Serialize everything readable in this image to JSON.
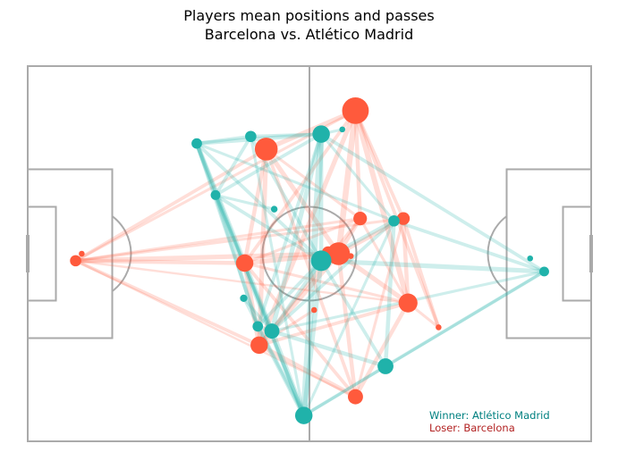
{
  "chart_data": {
    "type": "scatter",
    "title": "Players mean positions and passes",
    "subtitle": "Barcelona vs. Atlético Madrid",
    "x_range": [
      0,
      120
    ],
    "y_range": [
      0,
      80
    ],
    "grid": false,
    "legend_placement": "bottom-right",
    "annotations": {
      "winner_text": "Winner: Atlético Madrid",
      "loser_text": "Loser: Barcelona"
    },
    "colors": {
      "pitch_lines": "#aaaaaa",
      "barcelona": "#ff5a3c",
      "atletico": "#20b2aa",
      "winner_text": "#008080",
      "loser_text": "#b22222"
    },
    "series": [
      {
        "team": "Barcelona",
        "players": [
          {
            "id": "b1",
            "x": 10.2,
            "y": 38.5,
            "size": 1.0
          },
          {
            "id": "b2",
            "x": 69.8,
            "y": 70.5,
            "size": 3.0
          },
          {
            "id": "b3",
            "x": 50.8,
            "y": 62.3,
            "size": 2.5
          },
          {
            "id": "b4",
            "x": 70.8,
            "y": 47.5,
            "size": 1.3
          },
          {
            "id": "b5",
            "x": 80.0,
            "y": 47.5,
            "size": 1.2
          },
          {
            "id": "b6",
            "x": 66.2,
            "y": 40.0,
            "size": 2.5
          },
          {
            "id": "b7",
            "x": 64.0,
            "y": 40.2,
            "size": 1.2
          },
          {
            "id": "b8",
            "x": 46.2,
            "y": 38.0,
            "size": 1.8
          },
          {
            "id": "b9",
            "x": 81.0,
            "y": 29.5,
            "size": 2.0
          },
          {
            "id": "b10",
            "x": 49.3,
            "y": 20.5,
            "size": 1.8
          },
          {
            "id": "b11",
            "x": 69.8,
            "y": 9.5,
            "size": 1.5
          },
          {
            "id": "b12",
            "x": 61.0,
            "y": 28.0,
            "size": 0.3
          },
          {
            "id": "b13",
            "x": 87.5,
            "y": 24.3,
            "size": 0.3
          },
          {
            "id": "b14",
            "x": 68.8,
            "y": 39.5,
            "size": 0.3
          },
          {
            "id": "b15",
            "x": 11.5,
            "y": 40.0,
            "size": 0.3
          }
        ]
      },
      {
        "team": "Atlético Madrid",
        "players": [
          {
            "id": "a1",
            "x": 36.0,
            "y": 63.5,
            "size": 0.9
          },
          {
            "id": "a2",
            "x": 47.5,
            "y": 65.0,
            "size": 1.0
          },
          {
            "id": "a3",
            "x": 62.5,
            "y": 65.5,
            "size": 1.8
          },
          {
            "id": "a4",
            "x": 40.0,
            "y": 52.5,
            "size": 0.8
          },
          {
            "id": "a5",
            "x": 78.0,
            "y": 47.0,
            "size": 1.0
          },
          {
            "id": "a6",
            "x": 62.5,
            "y": 38.5,
            "size": 2.2
          },
          {
            "id": "a7",
            "x": 46.0,
            "y": 30.5,
            "size": 0.5
          },
          {
            "id": "a8",
            "x": 52.0,
            "y": 23.5,
            "size": 1.5
          },
          {
            "id": "a9",
            "x": 49.0,
            "y": 24.5,
            "size": 0.9
          },
          {
            "id": "a10",
            "x": 76.2,
            "y": 16.0,
            "size": 1.6
          },
          {
            "id": "a11",
            "x": 58.8,
            "y": 5.5,
            "size": 1.8
          },
          {
            "id": "a12",
            "x": 110.0,
            "y": 36.2,
            "size": 0.8
          },
          {
            "id": "a13",
            "x": 52.5,
            "y": 49.5,
            "size": 0.4
          },
          {
            "id": "a14",
            "x": 67.0,
            "y": 66.5,
            "size": 0.3
          },
          {
            "id": "a15",
            "x": 107.0,
            "y": 39.0,
            "size": 0.3
          }
        ]
      }
    ],
    "passes": {
      "barcelona": [
        [
          "b1",
          "b6",
          0.6
        ],
        [
          "b1",
          "b8",
          0.5
        ],
        [
          "b1",
          "b3",
          0.4
        ],
        [
          "b1",
          "b2",
          0.3
        ],
        [
          "b1",
          "b10",
          0.4
        ],
        [
          "b1",
          "b5",
          0.3
        ],
        [
          "b1",
          "b4",
          0.3
        ],
        [
          "b1",
          "b9",
          0.2
        ],
        [
          "b1",
          "b11",
          0.2
        ],
        [
          "b2",
          "b3",
          0.6
        ],
        [
          "b2",
          "b6",
          0.8
        ],
        [
          "b2",
          "b10",
          0.6
        ],
        [
          "b2",
          "b9",
          0.7
        ],
        [
          "b2",
          "b4",
          0.5
        ],
        [
          "b2",
          "b13",
          0.4
        ],
        [
          "b2",
          "b8",
          0.4
        ],
        [
          "b2",
          "b5",
          0.4
        ],
        [
          "b3",
          "b8",
          0.5
        ],
        [
          "b3",
          "b10",
          0.6
        ],
        [
          "b3",
          "b6",
          0.6
        ],
        [
          "b3",
          "b11",
          0.4
        ],
        [
          "b3",
          "b4",
          0.3
        ],
        [
          "b4",
          "b6",
          0.5
        ],
        [
          "b4",
          "b10",
          0.4
        ],
        [
          "b4",
          "b8",
          0.3
        ],
        [
          "b4",
          "b9",
          0.3
        ],
        [
          "b5",
          "b9",
          0.5
        ],
        [
          "b5",
          "b6",
          0.5
        ],
        [
          "b5",
          "b11",
          0.3
        ],
        [
          "b5",
          "b13",
          0.4
        ],
        [
          "b6",
          "b8",
          0.6
        ],
        [
          "b6",
          "b9",
          0.6
        ],
        [
          "b6",
          "b10",
          0.6
        ],
        [
          "b6",
          "b11",
          0.5
        ],
        [
          "b6",
          "b7",
          0.3
        ],
        [
          "b8",
          "b10",
          0.6
        ],
        [
          "b8",
          "b11",
          0.4
        ],
        [
          "b8",
          "b9",
          0.3
        ],
        [
          "b9",
          "b11",
          0.5
        ],
        [
          "b9",
          "b10",
          0.4
        ],
        [
          "b9",
          "b13",
          0.3
        ],
        [
          "b10",
          "b11",
          0.6
        ],
        [
          "b10",
          "b12",
          0.3
        ]
      ],
      "atletico": [
        [
          "a1",
          "a2",
          0.4
        ],
        [
          "a1",
          "a3",
          0.5
        ],
        [
          "a1",
          "a4",
          0.5
        ],
        [
          "a1",
          "a6",
          0.4
        ],
        [
          "a1",
          "a8",
          0.6
        ],
        [
          "a1",
          "a11",
          0.4
        ],
        [
          "a1",
          "a5",
          0.3
        ],
        [
          "a1",
          "a9",
          0.4
        ],
        [
          "a2",
          "a3",
          0.4
        ],
        [
          "a2",
          "a4",
          0.4
        ],
        [
          "a2",
          "a6",
          0.4
        ],
        [
          "a2",
          "a11",
          0.3
        ],
        [
          "a3",
          "a11",
          0.9
        ],
        [
          "a3",
          "a8",
          0.6
        ],
        [
          "a3",
          "a6",
          0.5
        ],
        [
          "a3",
          "a4",
          0.4
        ],
        [
          "a3",
          "a9",
          0.4
        ],
        [
          "a3",
          "a14",
          0.3
        ],
        [
          "a3",
          "a5",
          0.3
        ],
        [
          "a4",
          "a9",
          0.5
        ],
        [
          "a4",
          "a6",
          0.4
        ],
        [
          "a4",
          "a8",
          0.4
        ],
        [
          "a4",
          "a11",
          0.5
        ],
        [
          "a4",
          "a13",
          0.3
        ],
        [
          "a5",
          "a6",
          0.5
        ],
        [
          "a5",
          "a10",
          0.5
        ],
        [
          "a5",
          "a8",
          0.4
        ],
        [
          "a5",
          "a12",
          0.4
        ],
        [
          "a5",
          "a11",
          0.3
        ],
        [
          "a6",
          "a8",
          0.5
        ],
        [
          "a6",
          "a11",
          0.6
        ],
        [
          "a6",
          "a10",
          0.4
        ],
        [
          "a6",
          "a9",
          0.4
        ],
        [
          "a6",
          "a12",
          0.6
        ],
        [
          "a7",
          "a8",
          0.3
        ],
        [
          "a7",
          "a11",
          0.3
        ],
        [
          "a8",
          "a11",
          0.7
        ],
        [
          "a8",
          "a10",
          0.5
        ],
        [
          "a8",
          "a9",
          0.5
        ],
        [
          "a9",
          "a11",
          0.6
        ],
        [
          "a10",
          "a11",
          0.4
        ],
        [
          "a10",
          "a12",
          0.4
        ],
        [
          "a12",
          "a3",
          0.4
        ],
        [
          "a12",
          "a8",
          0.3
        ],
        [
          "a12",
          "a11",
          0.3
        ]
      ]
    }
  }
}
